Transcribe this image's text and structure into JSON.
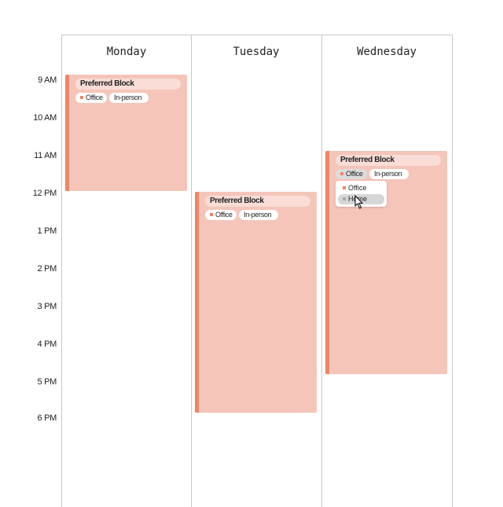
{
  "days": [
    {
      "name": "Monday",
      "block": {
        "title": "Preferred Block",
        "tags": [
          "Office",
          "In-person"
        ]
      }
    },
    {
      "name": "Tuesday",
      "block": {
        "title": "Preferred Block",
        "tags": [
          "Office",
          "In-person"
        ]
      }
    },
    {
      "name": "Wednesday",
      "block": {
        "title": "Preferred Block",
        "tags": [
          "Office",
          "In-person"
        ],
        "dropdown": {
          "options": [
            "Office",
            "Home"
          ]
        }
      }
    }
  ],
  "times": [
    "9 AM",
    "10 AM",
    "11 AM",
    "12 PM",
    "1 PM",
    "2 PM",
    "3 PM",
    "4 PM",
    "5 PM",
    "6 PM"
  ]
}
